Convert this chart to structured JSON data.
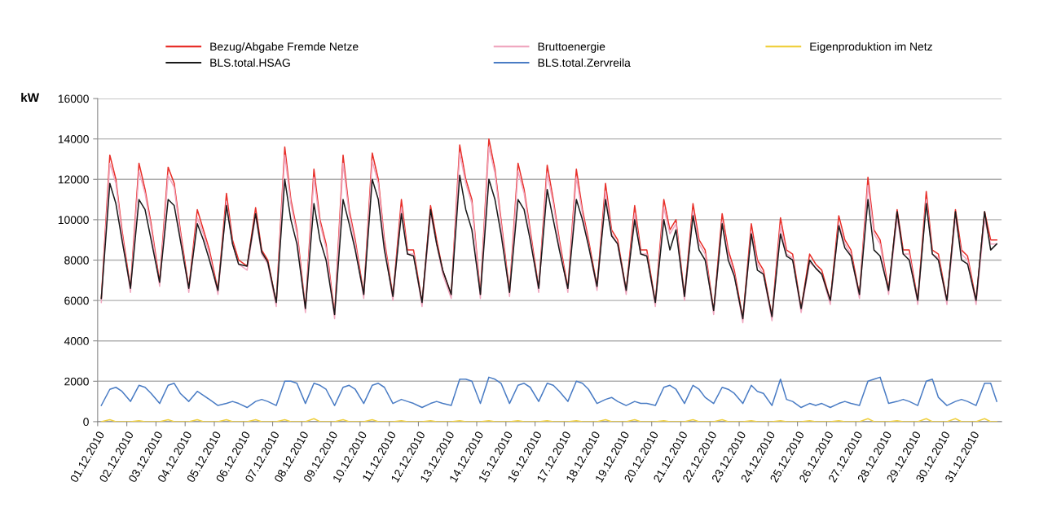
{
  "chart_data": {
    "type": "line",
    "ylabel": "kW",
    "grid": "y",
    "legend": "top",
    "line_style": "solid",
    "marker": "none",
    "xlim": [
      "2010-12-01T00:00",
      "2011-01-01T00:00"
    ],
    "ylim": [
      0,
      16000
    ],
    "yticks": [
      0,
      2000,
      4000,
      6000,
      8000,
      10000,
      12000,
      14000,
      16000
    ],
    "xticks": [
      {
        "value": "2010-12-01",
        "label": "01.12.2010"
      },
      {
        "value": "2010-12-02",
        "label": "02.12.2010"
      },
      {
        "value": "2010-12-03",
        "label": "03.12.2010"
      },
      {
        "value": "2010-12-04",
        "label": "04.12.2010"
      },
      {
        "value": "2010-12-05",
        "label": "05.12.2010"
      },
      {
        "value": "2010-12-06",
        "label": "06.12.2010"
      },
      {
        "value": "2010-12-07",
        "label": "07.12.2010"
      },
      {
        "value": "2010-12-08",
        "label": "08.12.2010"
      },
      {
        "value": "2010-12-09",
        "label": "09.12.2010"
      },
      {
        "value": "2010-12-10",
        "label": "10.12.2010"
      },
      {
        "value": "2010-12-11",
        "label": "11.12.2010"
      },
      {
        "value": "2010-12-12",
        "label": "12.12.2010"
      },
      {
        "value": "2010-12-13",
        "label": "13.12.2010"
      },
      {
        "value": "2010-12-14",
        "label": "14.12.2010"
      },
      {
        "value": "2010-12-15",
        "label": "15.12.2010"
      },
      {
        "value": "2010-12-16",
        "label": "16.12.2010"
      },
      {
        "value": "2010-12-17",
        "label": "17.12.2010"
      },
      {
        "value": "2010-12-18",
        "label": "18.12.2010"
      },
      {
        "value": "2010-12-19",
        "label": "19.12.2010"
      },
      {
        "value": "2010-12-20",
        "label": "20.12.2010"
      },
      {
        "value": "2010-12-21",
        "label": "21.12.2010"
      },
      {
        "value": "2010-12-22",
        "label": "22.12.2010"
      },
      {
        "value": "2010-12-23",
        "label": "23.12.2010"
      },
      {
        "value": "2010-12-24",
        "label": "24.12.2010"
      },
      {
        "value": "2010-12-25",
        "label": "25.12.2010"
      },
      {
        "value": "2010-12-26",
        "label": "26.12.2010"
      },
      {
        "value": "2010-12-27",
        "label": "27.12.2010"
      },
      {
        "value": "2010-12-28",
        "label": "28.12.2010"
      },
      {
        "value": "2010-12-29",
        "label": "29.12.2010"
      },
      {
        "value": "2010-12-30",
        "label": "30.12.2010"
      },
      {
        "value": "2010-12-31",
        "label": "31.12.2010"
      }
    ],
    "x": [
      "2010-12-01T03:00",
      "2010-12-01T10:00",
      "2010-12-01T15:00",
      "2010-12-01T20:00",
      "2010-12-02T03:00",
      "2010-12-02T10:00",
      "2010-12-02T15:00",
      "2010-12-02T20:00",
      "2010-12-03T03:00",
      "2010-12-03T10:00",
      "2010-12-03T15:00",
      "2010-12-03T20:00",
      "2010-12-04T03:00",
      "2010-12-04T10:00",
      "2010-12-04T15:00",
      "2010-12-04T20:00",
      "2010-12-05T03:00",
      "2010-12-05T10:00",
      "2010-12-05T15:00",
      "2010-12-05T20:00",
      "2010-12-06T03:00",
      "2010-12-06T10:00",
      "2010-12-06T15:00",
      "2010-12-06T20:00",
      "2010-12-07T03:00",
      "2010-12-07T10:00",
      "2010-12-07T15:00",
      "2010-12-07T20:00",
      "2010-12-08T03:00",
      "2010-12-08T10:00",
      "2010-12-08T15:00",
      "2010-12-08T20:00",
      "2010-12-09T03:00",
      "2010-12-09T10:00",
      "2010-12-09T15:00",
      "2010-12-09T20:00",
      "2010-12-10T03:00",
      "2010-12-10T10:00",
      "2010-12-10T15:00",
      "2010-12-10T20:00",
      "2010-12-11T03:00",
      "2010-12-11T10:00",
      "2010-12-11T15:00",
      "2010-12-11T20:00",
      "2010-12-12T03:00",
      "2010-12-12T10:00",
      "2010-12-12T15:00",
      "2010-12-12T20:00",
      "2010-12-13T03:00",
      "2010-12-13T10:00",
      "2010-12-13T15:00",
      "2010-12-13T20:00",
      "2010-12-14T03:00",
      "2010-12-14T10:00",
      "2010-12-14T15:00",
      "2010-12-14T20:00",
      "2010-12-15T03:00",
      "2010-12-15T10:00",
      "2010-12-15T15:00",
      "2010-12-15T20:00",
      "2010-12-16T03:00",
      "2010-12-16T10:00",
      "2010-12-16T15:00",
      "2010-12-16T20:00",
      "2010-12-17T03:00",
      "2010-12-17T10:00",
      "2010-12-17T15:00",
      "2010-12-17T20:00",
      "2010-12-18T03:00",
      "2010-12-18T10:00",
      "2010-12-18T15:00",
      "2010-12-18T20:00",
      "2010-12-19T03:00",
      "2010-12-19T10:00",
      "2010-12-19T15:00",
      "2010-12-19T20:00",
      "2010-12-20T03:00",
      "2010-12-20T10:00",
      "2010-12-20T15:00",
      "2010-12-20T20:00",
      "2010-12-21T03:00",
      "2010-12-21T10:00",
      "2010-12-21T15:00",
      "2010-12-21T20:00",
      "2010-12-22T03:00",
      "2010-12-22T10:00",
      "2010-12-22T15:00",
      "2010-12-22T20:00",
      "2010-12-23T03:00",
      "2010-12-23T10:00",
      "2010-12-23T15:00",
      "2010-12-23T20:00",
      "2010-12-24T03:00",
      "2010-12-24T10:00",
      "2010-12-24T15:00",
      "2010-12-24T20:00",
      "2010-12-25T03:00",
      "2010-12-25T10:00",
      "2010-12-25T15:00",
      "2010-12-25T20:00",
      "2010-12-26T03:00",
      "2010-12-26T10:00",
      "2010-12-26T15:00",
      "2010-12-26T20:00",
      "2010-12-27T03:00",
      "2010-12-27T10:00",
      "2010-12-27T15:00",
      "2010-12-27T20:00",
      "2010-12-28T03:00",
      "2010-12-28T10:00",
      "2010-12-28T15:00",
      "2010-12-28T20:00",
      "2010-12-29T03:00",
      "2010-12-29T10:00",
      "2010-12-29T15:00",
      "2010-12-29T20:00",
      "2010-12-30T03:00",
      "2010-12-30T10:00",
      "2010-12-30T15:00",
      "2010-12-30T20:00",
      "2010-12-31T03:00",
      "2010-12-31T10:00",
      "2010-12-31T15:00",
      "2010-12-31T20:00"
    ],
    "series": [
      {
        "name": "Bezug/Abgabe Fremde Netze",
        "color": "#e8302a",
        "values": [
          6100,
          13200,
          12000,
          9500,
          6600,
          12800,
          11500,
          9800,
          6900,
          12600,
          11800,
          9500,
          6600,
          10500,
          9500,
          8500,
          6500,
          11300,
          9000,
          8000,
          7700,
          10600,
          8500,
          8000,
          5900,
          13600,
          11000,
          9500,
          5600,
          12500,
          10000,
          8800,
          5300,
          13200,
          10500,
          9000,
          6300,
          13300,
          12000,
          9000,
          6200,
          11000,
          8500,
          8500,
          5900,
          10700,
          9000,
          7500,
          6300,
          13700,
          12000,
          11000,
          6300,
          14000,
          12500,
          10000,
          6400,
          12800,
          11500,
          9500,
          6600,
          12700,
          11000,
          9000,
          6600,
          12500,
          10500,
          9000,
          6700,
          11800,
          9500,
          9000,
          6500,
          10700,
          8500,
          8500,
          5900,
          11000,
          9500,
          10000,
          6200,
          10800,
          9000,
          8500,
          5500,
          10300,
          8500,
          7500,
          5100,
          9800,
          8000,
          7500,
          5200,
          10100,
          8500,
          8300,
          5600,
          8300,
          7800,
          7500,
          6000,
          10200,
          9000,
          8500,
          6300,
          12100,
          9500,
          9000,
          6500,
          10500,
          8500,
          8500,
          6000,
          11400,
          8500,
          8300,
          6000,
          10500,
          8500,
          8200,
          6000,
          10400,
          9000,
          9000
        ]
      },
      {
        "name": "Bruttoenergie",
        "color": "#f0a8c0",
        "values": [
          5900,
          12800,
          11800,
          9300,
          6400,
          12400,
          11300,
          9600,
          6700,
          12200,
          11600,
          9300,
          6400,
          10100,
          9300,
          8300,
          6300,
          10900,
          8800,
          7800,
          7500,
          10200,
          8300,
          7800,
          5700,
          13200,
          10800,
          9300,
          5400,
          12100,
          9800,
          8600,
          5100,
          12800,
          10300,
          8800,
          6100,
          12900,
          11800,
          8800,
          6000,
          10600,
          8300,
          8300,
          5700,
          10300,
          8800,
          7300,
          6100,
          13300,
          11800,
          10800,
          6100,
          13600,
          12300,
          9800,
          6200,
          12400,
          11300,
          9300,
          6400,
          12300,
          10800,
          8800,
          6400,
          12100,
          10300,
          8800,
          6500,
          11400,
          9300,
          8800,
          6300,
          10300,
          8300,
          8300,
          5700,
          10600,
          9300,
          9800,
          6000,
          10400,
          8800,
          8300,
          5300,
          9900,
          8300,
          7300,
          4900,
          9400,
          7800,
          7300,
          5000,
          9700,
          8300,
          8100,
          5400,
          7900,
          7600,
          7300,
          5800,
          9800,
          8800,
          8300,
          6100,
          11700,
          9300,
          8800,
          6300,
          10100,
          8300,
          8300,
          5800,
          11000,
          8300,
          8100,
          5800,
          10100,
          8300,
          8000,
          5800,
          10000,
          8800,
          8800
        ]
      },
      {
        "name": "Eigenproduktion im Netz",
        "color": "#f0d040",
        "values": [
          0,
          100,
          0,
          0,
          0,
          50,
          0,
          0,
          0,
          100,
          0,
          0,
          0,
          100,
          0,
          0,
          0,
          100,
          0,
          0,
          0,
          100,
          0,
          0,
          0,
          100,
          0,
          0,
          0,
          150,
          0,
          0,
          0,
          100,
          0,
          0,
          0,
          100,
          0,
          0,
          0,
          50,
          0,
          0,
          0,
          50,
          0,
          0,
          0,
          50,
          0,
          0,
          0,
          50,
          0,
          0,
          0,
          50,
          0,
          0,
          0,
          50,
          0,
          0,
          0,
          50,
          0,
          0,
          0,
          100,
          0,
          0,
          0,
          100,
          0,
          0,
          0,
          50,
          0,
          0,
          0,
          100,
          0,
          0,
          0,
          100,
          0,
          0,
          0,
          50,
          0,
          0,
          0,
          50,
          0,
          0,
          0,
          50,
          0,
          0,
          0,
          50,
          0,
          0,
          0,
          150,
          0,
          0,
          0,
          50,
          0,
          0,
          0,
          150,
          0,
          0,
          0,
          150,
          0,
          0,
          0,
          150,
          0,
          0
        ]
      },
      {
        "name": "BLS.total.HSAG",
        "color": "#1a1a1a",
        "values": [
          6100,
          11800,
          10800,
          9000,
          6600,
          11000,
          10500,
          9000,
          6900,
          11000,
          10700,
          9000,
          6600,
          9800,
          9000,
          8000,
          6500,
          10700,
          8800,
          7800,
          7700,
          10300,
          8400,
          7900,
          5900,
          12000,
          10000,
          8800,
          5600,
          10800,
          9000,
          8000,
          5300,
          11000,
          9800,
          8500,
          6300,
          12000,
          11000,
          8500,
          6200,
          10300,
          8300,
          8200,
          5900,
          10500,
          8800,
          7500,
          6300,
          12200,
          10500,
          9500,
          6300,
          12000,
          11000,
          9300,
          6400,
          11000,
          10500,
          9000,
          6600,
          11500,
          10000,
          8500,
          6600,
          11000,
          10000,
          8700,
          6700,
          11000,
          9200,
          8800,
          6500,
          10000,
          8300,
          8200,
          5900,
          10000,
          8500,
          9500,
          6200,
          10200,
          8500,
          8000,
          5500,
          9800,
          8000,
          7200,
          5100,
          9300,
          7500,
          7300,
          5200,
          9300,
          8200,
          8000,
          5600,
          8000,
          7600,
          7300,
          6000,
          9700,
          8600,
          8200,
          6300,
          11000,
          8500,
          8200,
          6500,
          10400,
          8300,
          8000,
          6000,
          10800,
          8300,
          8000,
          6000,
          10400,
          8000,
          7800,
          6000,
          10400,
          8500,
          8800
        ]
      },
      {
        "name": "BLS.total.Zervreila",
        "color": "#4a7cc4",
        "values": [
          800,
          1600,
          1700,
          1500,
          1000,
          1800,
          1700,
          1400,
          900,
          1800,
          1900,
          1400,
          1000,
          1500,
          1300,
          1100,
          800,
          900,
          1000,
          900,
          700,
          1000,
          1100,
          1000,
          800,
          2000,
          2000,
          1900,
          900,
          1900,
          1800,
          1600,
          800,
          1700,
          1800,
          1600,
          900,
          1800,
          1900,
          1700,
          900,
          1100,
          1000,
          900,
          700,
          900,
          1000,
          900,
          800,
          2100,
          2100,
          2000,
          900,
          2200,
          2100,
          1900,
          900,
          1800,
          1900,
          1700,
          1000,
          1900,
          1800,
          1500,
          1000,
          2000,
          1900,
          1600,
          900,
          1100,
          1200,
          1000,
          800,
          1000,
          900,
          900,
          800,
          1700,
          1800,
          1600,
          900,
          1800,
          1600,
          1200,
          900,
          1700,
          1600,
          1400,
          900,
          1800,
          1500,
          1400,
          800,
          2100,
          1100,
          1000,
          700,
          900,
          800,
          900,
          700,
          900,
          1000,
          900,
          800,
          2000,
          2100,
          2200,
          900,
          1000,
          1100,
          1000,
          800,
          2000,
          2100,
          1200,
          800,
          1000,
          1100,
          1000,
          800,
          1900,
          1900,
          1000
        ]
      }
    ]
  }
}
